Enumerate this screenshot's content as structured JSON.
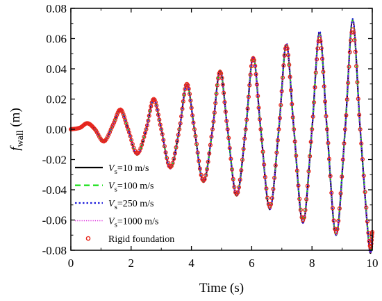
{
  "chart_data": {
    "type": "line",
    "title": "",
    "xlabel": "Time (s)",
    "ylabel": {
      "symbol": "f",
      "subscript": "wall",
      "unit": " (m)"
    },
    "xlim": [
      0,
      10
    ],
    "ylim": [
      -0.08,
      0.08
    ],
    "x_ticks": [
      0,
      2,
      4,
      6,
      8,
      10
    ],
    "x_tick_labels": [
      "0",
      "2",
      "4",
      "6",
      "8",
      "10"
    ],
    "y_ticks": [
      -0.08,
      -0.06,
      -0.04,
      -0.02,
      0.0,
      0.02,
      0.04,
      0.06,
      0.08
    ],
    "y_tick_labels": [
      "-0.08",
      "-0.06",
      "-0.04",
      "-0.02",
      "0.00",
      "0.02",
      "0.04",
      "0.06",
      "0.08"
    ],
    "grid": false,
    "legend_position": "bottom-left",
    "series": [
      {
        "name": "Vs=10 m/s",
        "legend": {
          "symbol": "V",
          "subscript": "s",
          "text": "=10 m/s"
        },
        "style": "solid",
        "color": "#000000",
        "x": [
          0,
          0.3,
          0.55,
          0.8,
          1.1,
          1.4,
          1.65,
          1.9,
          2.2,
          2.5,
          2.75,
          3.0,
          3.3,
          3.6,
          3.85,
          4.1,
          4.4,
          4.7,
          4.95,
          5.2,
          5.5,
          5.8,
          6.05,
          6.3,
          6.6,
          6.9,
          7.15,
          7.4,
          7.7,
          8.0,
          8.25,
          8.5,
          8.8,
          9.1,
          9.35,
          9.6,
          9.9,
          10.0
        ],
        "y": [
          0.0,
          0.001,
          0.004,
          0.0,
          -0.008,
          0.003,
          0.013,
          0.0,
          -0.017,
          0.0,
          0.02,
          0.0,
          -0.026,
          0.0,
          0.03,
          0.0,
          -0.035,
          0.0,
          0.039,
          0.0,
          -0.044,
          0.0,
          0.048,
          0.0,
          -0.053,
          0.0,
          0.056,
          0.0,
          -0.062,
          0.0,
          0.064,
          0.0,
          -0.07,
          0.0,
          0.072,
          0.0,
          -0.078,
          -0.07
        ]
      },
      {
        "name": "Vs=100 m/s",
        "legend": {
          "symbol": "V",
          "subscript": "s",
          "text": "=100 m/s"
        },
        "style": "dashed",
        "color": "#00dd00",
        "x": [
          0,
          0.3,
          0.55,
          0.8,
          1.1,
          1.4,
          1.65,
          1.9,
          2.2,
          2.5,
          2.75,
          3.0,
          3.3,
          3.6,
          3.85,
          4.1,
          4.4,
          4.7,
          4.95,
          5.2,
          5.5,
          5.8,
          6.05,
          6.3,
          6.6,
          6.9,
          7.15,
          7.4,
          7.7,
          8.0,
          8.25,
          8.5,
          8.8,
          9.1,
          9.35,
          9.6,
          9.9,
          10.0
        ],
        "y": [
          0.0,
          0.001,
          0.004,
          0.0,
          -0.008,
          0.003,
          0.013,
          0.0,
          -0.017,
          0.0,
          0.02,
          0.0,
          -0.026,
          0.0,
          0.03,
          0.0,
          -0.035,
          0.0,
          0.039,
          0.0,
          -0.044,
          0.0,
          0.048,
          0.0,
          -0.053,
          0.0,
          0.056,
          0.0,
          -0.061,
          0.0,
          0.064,
          0.0,
          -0.07,
          0.0,
          0.072,
          0.0,
          -0.077,
          -0.07
        ]
      },
      {
        "name": "Vs=250 m/s",
        "legend": {
          "symbol": "V",
          "subscript": "s",
          "text": "=250 m/s"
        },
        "style": "dotted",
        "color": "#1a1adb",
        "x": [
          0,
          0.3,
          0.55,
          0.8,
          1.1,
          1.4,
          1.65,
          1.9,
          2.2,
          2.5,
          2.75,
          3.0,
          3.3,
          3.6,
          3.85,
          4.1,
          4.4,
          4.7,
          4.95,
          5.2,
          5.5,
          5.8,
          6.05,
          6.3,
          6.6,
          6.9,
          7.15,
          7.4,
          7.7,
          8.0,
          8.25,
          8.5,
          8.8,
          9.1,
          9.35,
          9.6,
          9.9,
          10.0
        ],
        "y": [
          0.0,
          0.001,
          0.004,
          0.0,
          -0.008,
          0.003,
          0.013,
          0.0,
          -0.017,
          0.0,
          0.02,
          0.0,
          -0.026,
          0.0,
          0.03,
          0.0,
          -0.035,
          0.0,
          0.039,
          0.0,
          -0.044,
          0.0,
          0.048,
          0.0,
          -0.053,
          0.0,
          0.057,
          0.0,
          -0.062,
          0.0,
          0.065,
          0.0,
          -0.07,
          0.0,
          0.073,
          0.0,
          -0.078,
          -0.07
        ]
      },
      {
        "name": "Vs=1000 m/s",
        "legend": {
          "symbol": "V",
          "subscript": "s",
          "text": "=1000 m/s"
        },
        "style": "dotted-fine",
        "color": "#dd22dd",
        "x": [
          0,
          0.3,
          0.55,
          0.8,
          1.1,
          1.4,
          1.65,
          1.9,
          2.2,
          2.5,
          2.75,
          3.0,
          3.3,
          3.6,
          3.85,
          4.1,
          4.4,
          4.7,
          4.95,
          5.2,
          5.5,
          5.8,
          6.05,
          6.3,
          6.6,
          6.9,
          7.15,
          7.4,
          7.7,
          8.0,
          8.25,
          8.5,
          8.8,
          9.1,
          9.35,
          9.6,
          9.9,
          10.0
        ],
        "y": [
          0.0,
          0.001,
          0.004,
          0.0,
          -0.008,
          0.003,
          0.013,
          0.0,
          -0.017,
          0.0,
          0.02,
          0.0,
          -0.026,
          0.0,
          0.03,
          0.0,
          -0.035,
          0.0,
          0.039,
          0.0,
          -0.044,
          0.0,
          0.048,
          0.0,
          -0.053,
          0.0,
          0.056,
          0.0,
          -0.062,
          0.0,
          0.064,
          0.0,
          -0.07,
          0.0,
          0.072,
          0.0,
          -0.078,
          -0.07
        ]
      },
      {
        "name": "Rigid foundation",
        "legend": {
          "symbol": "",
          "subscript": "",
          "text": "Rigid foundation"
        },
        "style": "markers",
        "color": "#e8261c",
        "x": [
          0,
          0.3,
          0.55,
          0.8,
          1.1,
          1.4,
          1.65,
          1.9,
          2.2,
          2.5,
          2.75,
          3.0,
          3.3,
          3.6,
          3.85,
          4.1,
          4.4,
          4.7,
          4.95,
          5.2,
          5.5,
          5.8,
          6.05,
          6.3,
          6.6,
          6.9,
          7.15,
          7.4,
          7.7,
          8.0,
          8.25,
          8.5,
          8.8,
          9.1,
          9.35,
          9.6,
          9.9,
          10.0
        ],
        "y": [
          0.0,
          0.001,
          0.004,
          0.0,
          -0.008,
          0.003,
          0.013,
          0.0,
          -0.016,
          0.0,
          0.02,
          0.0,
          -0.025,
          0.0,
          0.03,
          0.0,
          -0.034,
          0.0,
          0.038,
          0.0,
          -0.043,
          0.0,
          0.047,
          0.0,
          -0.051,
          0.0,
          0.055,
          0.0,
          -0.06,
          0.0,
          0.06,
          0.0,
          -0.068,
          0.0,
          0.066,
          0.0,
          -0.074,
          -0.068
        ]
      }
    ]
  }
}
